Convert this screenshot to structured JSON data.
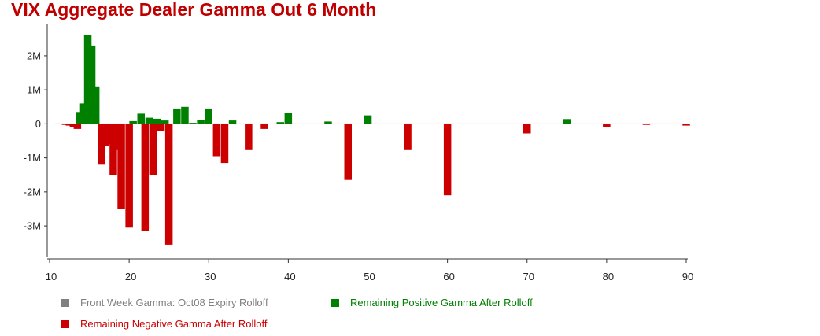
{
  "chart_data": {
    "type": "bar",
    "title": "VIX Aggregate Dealer Gamma Out 6 Month",
    "xlabel": "",
    "ylabel": "",
    "xlim": [
      10,
      90
    ],
    "ylim": [
      -3.9,
      2.9
    ],
    "x_ticks": [
      10,
      20,
      30,
      40,
      50,
      60,
      70,
      80,
      90
    ],
    "y_ticks": [
      {
        "value": 2,
        "label": "2M"
      },
      {
        "value": 1,
        "label": "1M"
      },
      {
        "value": 0,
        "label": "0"
      },
      {
        "value": -1,
        "label": "-1M"
      },
      {
        "value": -2,
        "label": "-2M"
      },
      {
        "value": -3,
        "label": "-3M"
      }
    ],
    "series": [
      {
        "name": "Front Week Gamma: Oct08 Expiry Rolloff",
        "color": "#808080",
        "points": []
      },
      {
        "name": "Remaining Positive Gamma After Rolloff",
        "color": "#008000",
        "points": [
          [
            13.8,
            0.35
          ],
          [
            14.3,
            0.6
          ],
          [
            14.8,
            2.6
          ],
          [
            15.3,
            2.3
          ],
          [
            15.8,
            1.1
          ],
          [
            20.5,
            0.08
          ],
          [
            21.5,
            0.3
          ],
          [
            22.5,
            0.18
          ],
          [
            23.5,
            0.15
          ],
          [
            24.5,
            0.1
          ],
          [
            26,
            0.45
          ],
          [
            27,
            0.5
          ],
          [
            28,
            0.03
          ],
          [
            29,
            0.12
          ],
          [
            30,
            0.45
          ],
          [
            33,
            0.1
          ],
          [
            39,
            0.05
          ],
          [
            40,
            0.33
          ],
          [
            45,
            0.07
          ],
          [
            50,
            0.25
          ],
          [
            75,
            0.14
          ]
        ]
      },
      {
        "name": "Remaining Negative Gamma After Rolloff",
        "color": "#cc0000",
        "points": [
          [
            12,
            -0.03
          ],
          [
            12.5,
            -0.05
          ],
          [
            13,
            -0.1
          ],
          [
            13.5,
            -0.15
          ],
          [
            16.5,
            -1.2
          ],
          [
            17,
            -0.65
          ],
          [
            17.5,
            -0.6
          ],
          [
            18,
            -1.5
          ],
          [
            18.5,
            -0.75
          ],
          [
            19,
            -2.5
          ],
          [
            20,
            -3.05
          ],
          [
            22,
            -3.15
          ],
          [
            23,
            -1.5
          ],
          [
            24,
            -0.2
          ],
          [
            25,
            -3.55
          ],
          [
            31,
            -0.95
          ],
          [
            32,
            -1.15
          ],
          [
            35,
            -0.75
          ],
          [
            37,
            -0.15
          ],
          [
            47.5,
            -1.65
          ],
          [
            55,
            -0.75
          ],
          [
            60,
            -2.1
          ],
          [
            70,
            -0.28
          ],
          [
            80,
            -0.1
          ],
          [
            85,
            -0.03
          ],
          [
            90,
            -0.05
          ]
        ]
      }
    ],
    "legend_position": "bottom-left"
  },
  "colors": {
    "title": "#c00000",
    "axis": "#333333"
  }
}
